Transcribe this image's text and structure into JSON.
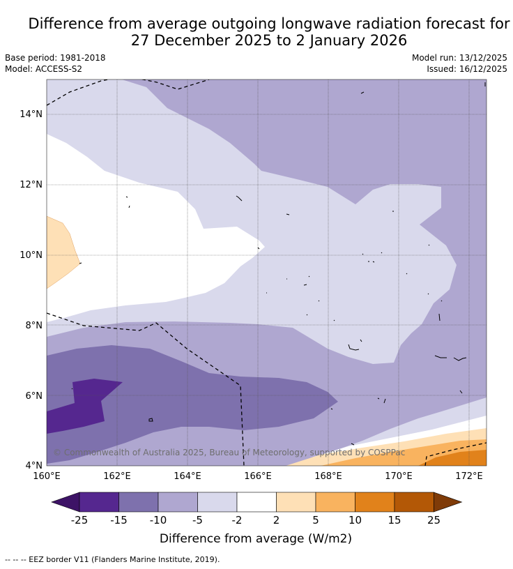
{
  "title": {
    "line1": "Difference from average outgoing longwave radiation forecast for",
    "line2": "27 December 2025 to 2 January 2026"
  },
  "meta": {
    "base_period": "Base period: 1981-2018",
    "model": "Model: ACCESS-S2",
    "model_run": "Model run: 13/12/2025",
    "issued": "Issued: 16/12/2025"
  },
  "map": {
    "lat_labels": [
      "14°N",
      "12°N",
      "10°N",
      "8°N",
      "6°N",
      "4°N"
    ],
    "lon_labels": [
      "160°E",
      "162°E",
      "164°E",
      "166°E",
      "168°E",
      "170°E",
      "172°E"
    ],
    "copyright": "© Commonwealth of Australia 2025, Bureau of Meteorology, supported by COSPPac"
  },
  "colorbar": {
    "tick_labels": [
      "-25",
      "-15",
      "-10",
      "-5",
      "-2",
      "2",
      "5",
      "10",
      "15",
      "25"
    ],
    "label": "Difference from average (W/m2)",
    "colors": [
      "#3d1366",
      "#55278f",
      "#7e71ad",
      "#afa7d0",
      "#d9d9ec",
      "#ffffff",
      "#fee0b6",
      "#f9b35f",
      "#e1821b",
      "#b35806",
      "#7f3b08"
    ]
  },
  "legend": {
    "eez_text": "--  --  -- EEZ border V11 (Flanders Marine Institute, 2019)."
  }
}
